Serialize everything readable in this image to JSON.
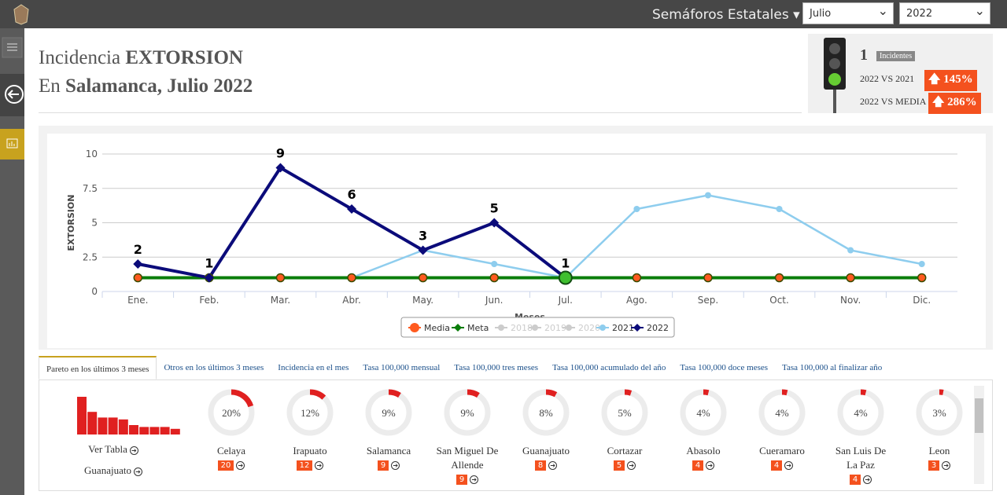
{
  "nav": {
    "brand": "Semáforos Estatales",
    "month_select": "Julio",
    "year_select": "2022"
  },
  "header": {
    "title_prefix": "Incidencia",
    "title_crime": "EXTORSION",
    "subtitle_prefix": "En",
    "subtitle_place": "Salamanca, Julio 2022"
  },
  "indicator": {
    "count": 1,
    "count_label": "Incidentes",
    "vs_2021_label": "2022 VS 2021",
    "vs_2021_value": "145%",
    "vs_media_label": "2022 VS MEDIA",
    "vs_media_value": "286%"
  },
  "chart_data": {
    "type": "line",
    "y_label": "EXTORSION",
    "x_label": "Meses",
    "categories": [
      "Ene.",
      "Feb.",
      "Mar.",
      "Abr.",
      "May.",
      "Jun.",
      "Jul.",
      "Ago.",
      "Sep.",
      "Oct.",
      "Nov.",
      "Dic."
    ],
    "ylim": [
      0,
      10
    ],
    "yticks": [
      0,
      2.5,
      5,
      7.5,
      10
    ],
    "grid": true,
    "legend": "bottom",
    "highlight": 6,
    "series": [
      {
        "name": "Media",
        "color": "#ff5a1f",
        "values": [
          1,
          1,
          1,
          1,
          1,
          1,
          1,
          1,
          1,
          1,
          1,
          1
        ]
      },
      {
        "name": "Meta",
        "color": "#0a7d0a",
        "values": [
          1,
          1,
          1,
          1,
          1,
          1,
          1,
          1,
          1,
          1,
          1,
          1
        ]
      },
      {
        "name": "2018",
        "color": "#cccccc",
        "hidden": true,
        "values": [
          null,
          null,
          null,
          null,
          null,
          null,
          null,
          null,
          null,
          null,
          null,
          null
        ]
      },
      {
        "name": "2019",
        "color": "#cccccc",
        "hidden": true,
        "values": [
          null,
          null,
          null,
          null,
          null,
          null,
          null,
          null,
          null,
          null,
          null,
          null
        ]
      },
      {
        "name": "2020",
        "color": "#cccccc",
        "hidden": true,
        "values": [
          null,
          null,
          null,
          null,
          null,
          null,
          null,
          null,
          null,
          null,
          null,
          null
        ]
      },
      {
        "name": "2021",
        "color": "#8ecdee",
        "values": [
          1,
          1,
          1,
          1,
          3,
          2,
          1,
          6,
          7,
          6,
          3,
          2
        ]
      },
      {
        "name": "2022",
        "color": "#0b0b7a",
        "labels": true,
        "values": [
          2,
          1,
          9,
          6,
          3,
          5,
          1,
          null,
          null,
          null,
          null,
          null
        ]
      }
    ]
  },
  "tabs": {
    "active": 0,
    "items": [
      "Pareto en los últimos 3 meses",
      "Otros en los últimos 3 meses",
      "Incidencia en el mes",
      "Tasa 100,000 mensual",
      "Tasa 100,000 tres meses",
      "Tasa 100,000 acumulado del año",
      "Tasa 100,000 doce meses",
      "Tasa 100,000 al finalizar año"
    ]
  },
  "pareto": {
    "table_link": "Ver Tabla",
    "state_link": "Guanajuato",
    "items": [
      {
        "name": "Celaya",
        "percent": 20,
        "percent_label": "20%",
        "count": 20
      },
      {
        "name": "Irapuato",
        "percent": 12,
        "percent_label": "12%",
        "count": 12
      },
      {
        "name": "Salamanca",
        "percent": 9,
        "percent_label": "9%",
        "count": 9
      },
      {
        "name": "San Miguel De Allende",
        "percent": 9,
        "percent_label": "9%",
        "count": 9
      },
      {
        "name": "Guanajuato",
        "percent": 8,
        "percent_label": "8%",
        "count": 8
      },
      {
        "name": "Cortazar",
        "percent": 5,
        "percent_label": "5%",
        "count": 5
      },
      {
        "name": "Abasolo",
        "percent": 4,
        "percent_label": "4%",
        "count": 4
      },
      {
        "name": "Cueramaro",
        "percent": 4,
        "percent_label": "4%",
        "count": 4
      },
      {
        "name": "San Luis De La Paz",
        "percent": 4,
        "percent_label": "4%",
        "count": 4
      },
      {
        "name": "Leon",
        "percent": 3,
        "percent_label": "3%",
        "count": 3
      }
    ]
  }
}
